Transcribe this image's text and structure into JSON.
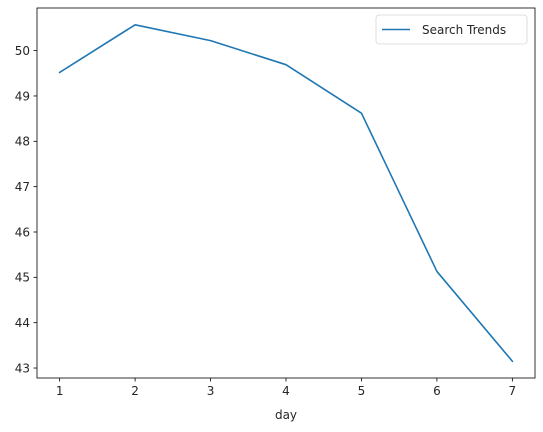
{
  "chart_data": {
    "type": "line",
    "title": "",
    "xlabel": "day",
    "ylabel": "",
    "x": [
      1,
      2,
      3,
      4,
      5,
      6,
      7
    ],
    "series": [
      {
        "name": "Search Trends",
        "color": "#1f77b4",
        "values": [
          49.52,
          50.57,
          50.22,
          49.69,
          48.62,
          45.13,
          43.15
        ]
      }
    ],
    "xticks": [
      1,
      2,
      3,
      4,
      5,
      6,
      7
    ],
    "xtick_labels": [
      "1",
      "2",
      "3",
      "4",
      "5",
      "6",
      "7"
    ],
    "yticks": [
      43,
      44,
      45,
      46,
      47,
      48,
      49,
      50
    ],
    "ytick_labels": [
      "43",
      "44",
      "45",
      "46",
      "47",
      "48",
      "49",
      "50"
    ],
    "xlim": [
      0.7,
      7.3
    ],
    "ylim": [
      42.78,
      50.94
    ],
    "grid": false,
    "legend_position": "top-right"
  }
}
